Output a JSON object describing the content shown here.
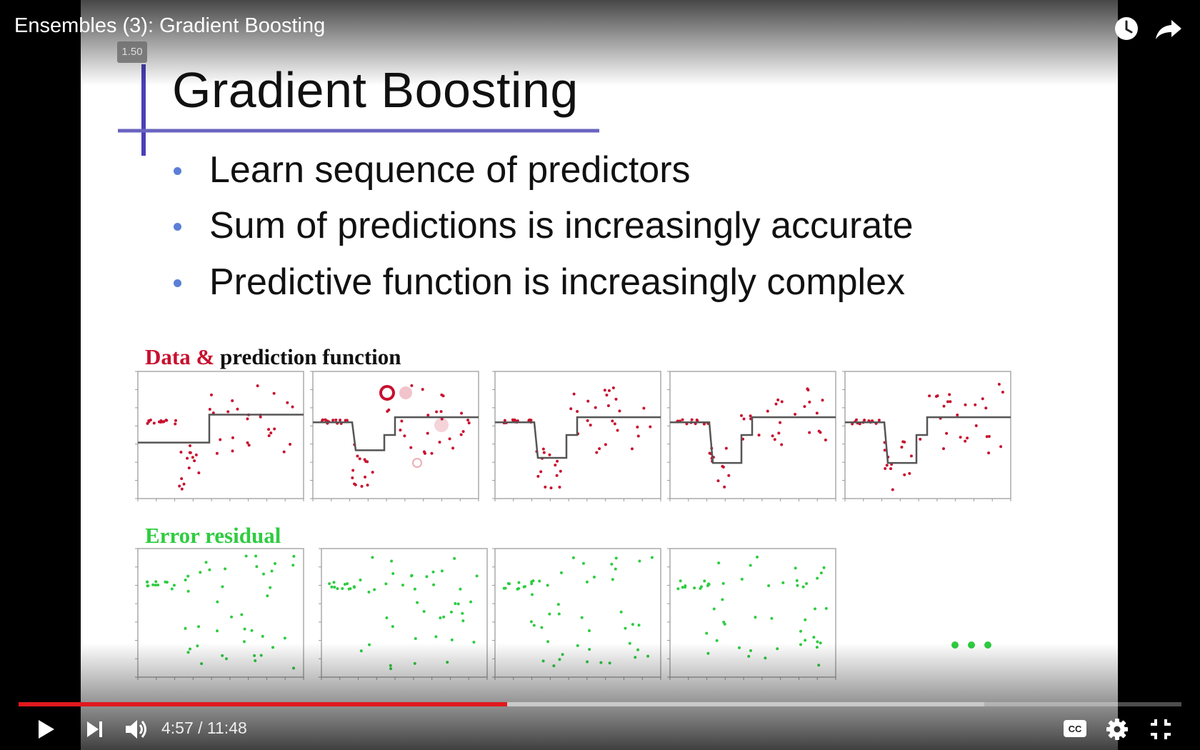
{
  "player": {
    "video_title": "Ensembles (3): Gradient Boosting",
    "speed_badge": "1.50",
    "current_time": "4:57",
    "duration": "11:48",
    "time_display": "4:57 / 11:48",
    "progress_played_fraction": 0.4204,
    "progress_loaded_fraction": 0.8305,
    "accent_color": "#e0181e",
    "icons": {
      "watch_later": "clock-icon",
      "share": "share-arrow-icon",
      "play": "play-icon",
      "next": "next-icon",
      "volume": "volume-icon",
      "captions": "cc-icon",
      "settings": "gear-icon",
      "exit_fullscreen": "exit-fullscreen-icon"
    }
  },
  "slide": {
    "title": "Gradient Boosting",
    "bullets": [
      "Learn sequence of predictors",
      "Sum of predictions is increasingly accurate",
      "Predictive function is increasingly complex"
    ],
    "bullet_color": "#5b7fd6",
    "rule_color": "#4a3fb8",
    "section_data_label_red": "Data &",
    "section_data_label_black": "prediction function",
    "section_residual_label": "Error residual",
    "ellipsis": "•••",
    "red_color": "#c8102e",
    "green_color": "#2ecc40"
  }
}
